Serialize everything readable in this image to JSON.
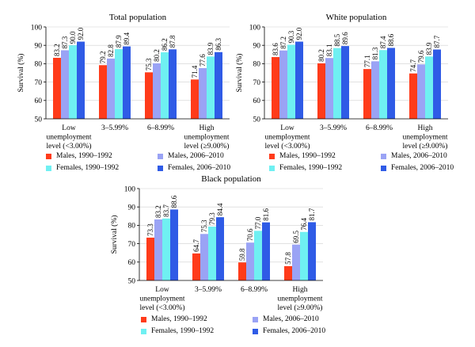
{
  "legend_items": [
    {
      "label": "Males, 1990–1992",
      "color": "#ff3b1a"
    },
    {
      "label": "Males, 2006–2010",
      "color": "#9aa3f5"
    },
    {
      "label": "Females, 1990–1992",
      "color": "#6ff0f2"
    },
    {
      "label": "Females, 2006–2010",
      "color": "#2f5be6"
    }
  ],
  "chart_data": [
    {
      "type": "bar",
      "title": "Total population",
      "ylabel": "Survival (%)",
      "ylim": [
        50,
        100
      ],
      "yticks": [
        50,
        60,
        70,
        80,
        90,
        100
      ],
      "categories": [
        [
          "Low",
          "unemployment",
          "level (<3.00%)"
        ],
        [
          "3–5.99%"
        ],
        [
          "6–8.99%"
        ],
        [
          "High",
          "unemployment",
          "level (≥9.00%)"
        ]
      ],
      "series": [
        {
          "name": "Males, 1990–1992",
          "color": "#ff3b1a",
          "values": [
            83.2,
            79.2,
            75.3,
            71.4
          ]
        },
        {
          "name": "Males, 2006–2010",
          "color": "#9aa3f5",
          "values": [
            87.3,
            82.8,
            80.2,
            77.6
          ]
        },
        {
          "name": "Females, 1990–1992",
          "color": "#6ff0f2",
          "values": [
            90.0,
            87.9,
            86.2,
            83.9
          ]
        },
        {
          "name": "Females, 2006–2010",
          "color": "#2f5be6",
          "values": [
            92.0,
            89.4,
            87.8,
            86.3
          ]
        }
      ],
      "labels": [
        [
          "83.2",
          "87.3",
          "90.0",
          "92.0"
        ],
        [
          "79.2",
          "82.8",
          "87.9",
          "89.4"
        ],
        [
          "75.3",
          "80.2",
          "86.2",
          "87.8"
        ],
        [
          "71.4",
          "77.6",
          "83.9",
          "86.3"
        ]
      ]
    },
    {
      "type": "bar",
      "title": "White population",
      "ylabel": "Survival (%)",
      "ylim": [
        50,
        100
      ],
      "yticks": [
        50,
        60,
        70,
        80,
        90,
        100
      ],
      "categories": [
        [
          "Low",
          "unemployment",
          "level (<3.00%)"
        ],
        [
          "3–5.99%"
        ],
        [
          "6–8.99%"
        ],
        [
          "High",
          "unemployment",
          "level (≥9.00%)"
        ]
      ],
      "series": [
        {
          "name": "Males, 1990–1992",
          "color": "#ff3b1a",
          "values": [
            83.6,
            80.2,
            77.1,
            74.7
          ]
        },
        {
          "name": "Males, 2006–2010",
          "color": "#9aa3f5",
          "values": [
            87.2,
            83.1,
            81.3,
            79.6
          ]
        },
        {
          "name": "Females, 1990–1992",
          "color": "#6ff0f2",
          "values": [
            90.3,
            88.5,
            87.4,
            83.9
          ]
        },
        {
          "name": "Females, 2006–2010",
          "color": "#2f5be6",
          "values": [
            92.0,
            89.6,
            88.6,
            87.7
          ]
        }
      ],
      "labels": [
        [
          "83.6",
          "87.2",
          "90.3",
          "92.0"
        ],
        [
          "80.2",
          "83.1",
          "88.5",
          "89.6"
        ],
        [
          "77.1",
          "81.3",
          "87.4",
          "88.6"
        ],
        [
          "74.7",
          "79.6",
          "83.9",
          "87.7"
        ]
      ]
    },
    {
      "type": "bar",
      "title": "Black population",
      "ylabel": "Survival (%)",
      "ylim": [
        50,
        100
      ],
      "yticks": [
        50,
        60,
        70,
        80,
        90,
        100
      ],
      "categories": [
        [
          "Low",
          "unemployment",
          "level (<3.00%)"
        ],
        [
          "3–5.99%"
        ],
        [
          "6–8.99%"
        ],
        [
          "High",
          "unemployment",
          "level (≥9.00%)"
        ]
      ],
      "series": [
        {
          "name": "Males, 1990–1992",
          "color": "#ff3b1a",
          "values": [
            73.3,
            64.7,
            59.8,
            57.8
          ]
        },
        {
          "name": "Males, 2006–2010",
          "color": "#9aa3f5",
          "values": [
            83.2,
            75.3,
            70.6,
            69.5
          ]
        },
        {
          "name": "Females, 1990–1992",
          "color": "#6ff0f2",
          "values": [
            83.7,
            79.3,
            77.0,
            76.4
          ]
        },
        {
          "name": "Females, 2006–2010",
          "color": "#2f5be6",
          "values": [
            88.6,
            84.4,
            81.6,
            81.7
          ]
        }
      ],
      "labels": [
        [
          "73.3",
          "83.2",
          "83.7",
          "88.6"
        ],
        [
          "64.7",
          "75.3",
          "79.3",
          "84.4"
        ],
        [
          "59.8",
          "70.6",
          "77.0",
          "81.6"
        ],
        [
          "57.8",
          "69.5",
          "76.4",
          "81.7"
        ]
      ]
    }
  ]
}
